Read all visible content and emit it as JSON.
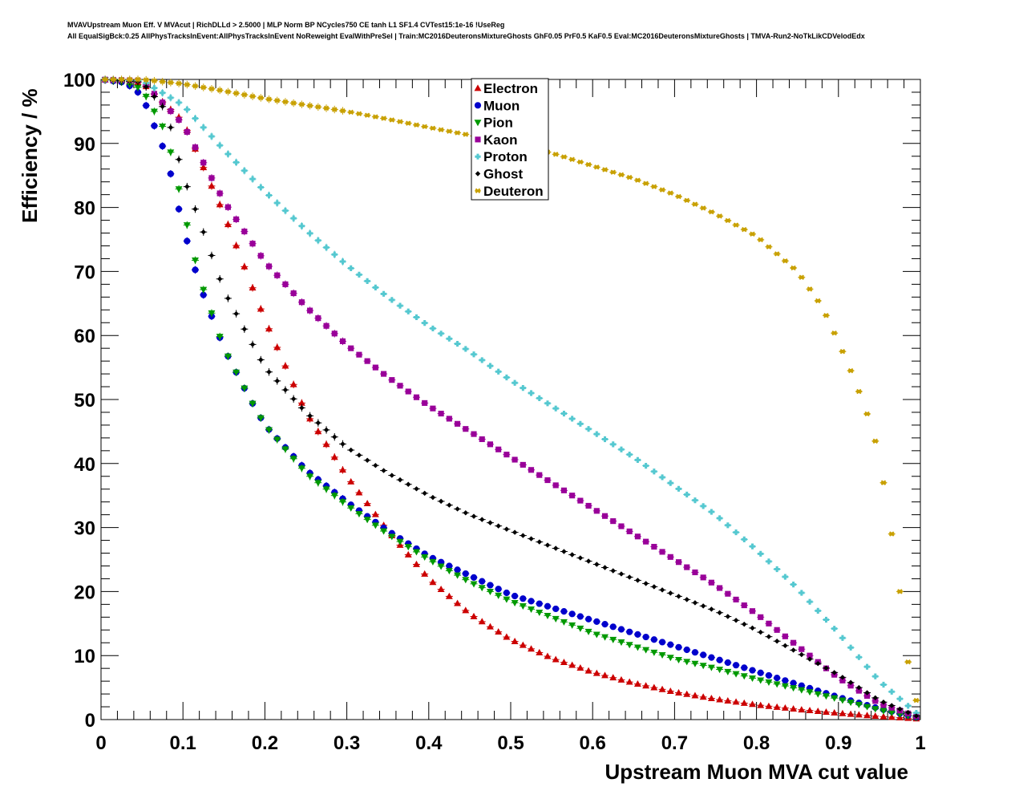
{
  "chart_data": {
    "type": "scatter",
    "title_line1": "MVAVUpstream Muon Eff. V MVAcut | RichDLLd > 2.5000 | MLP Norm BP NCycles750 CE tanh L1 SF1.4 CVTest15:1e-16 !UseReg",
    "title_line2": "All EqualSigBck:0.25 AllPhysTracksInEvent:AllPhysTracksInEvent NoReweight EvalWithPreSel | Train:MC2016DeuteronsMixtureGhosts GhF0.05 PrF0.5 KaF0.5 Eval:MC2016DeuteronsMixtureGhosts | TMVA-Run2-NoTkLikCDVelodEdx",
    "xlabel": "Upstream Muon MVA cut value",
    "ylabel": "Efficiency / %",
    "xlim": [
      0,
      1
    ],
    "ylim": [
      0,
      100
    ],
    "x_ticks": [
      "0",
      "0.1",
      "0.2",
      "0.3",
      "0.4",
      "0.5",
      "0.6",
      "0.7",
      "0.8",
      "0.9",
      "1"
    ],
    "y_ticks": [
      "0",
      "10",
      "20",
      "30",
      "40",
      "50",
      "60",
      "70",
      "80",
      "90",
      "100"
    ],
    "legend_position": "top-center",
    "series": [
      {
        "name": "Electron",
        "color": "#cc0000",
        "marker": "triangle-up",
        "points": [
          [
            0,
            100
          ],
          [
            0.05,
            99.5
          ],
          [
            0.1,
            93.5
          ],
          [
            0.15,
            79
          ],
          [
            0.2,
            62.5
          ],
          [
            0.25,
            48
          ],
          [
            0.3,
            38
          ],
          [
            0.35,
            29.5
          ],
          [
            0.4,
            22
          ],
          [
            0.45,
            16.5
          ],
          [
            0.5,
            12.5
          ],
          [
            0.55,
            9.6
          ],
          [
            0.6,
            7.4
          ],
          [
            0.65,
            5.7
          ],
          [
            0.7,
            4.3
          ],
          [
            0.75,
            3.2
          ],
          [
            0.8,
            2.3
          ],
          [
            0.85,
            1.6
          ],
          [
            0.9,
            1.0
          ],
          [
            0.95,
            0.5
          ],
          [
            1,
            0.1
          ]
        ]
      },
      {
        "name": "Muon",
        "color": "#0000cc",
        "marker": "circle",
        "points": [
          [
            0,
            100
          ],
          [
            0.03,
            99.5
          ],
          [
            0.05,
            97.5
          ],
          [
            0.08,
            88
          ],
          [
            0.1,
            77
          ],
          [
            0.12,
            68
          ],
          [
            0.15,
            58
          ],
          [
            0.18,
            50.5
          ],
          [
            0.2,
            46
          ],
          [
            0.25,
            39
          ],
          [
            0.3,
            34
          ],
          [
            0.35,
            29.5
          ],
          [
            0.4,
            25.5
          ],
          [
            0.45,
            22.5
          ],
          [
            0.5,
            19.5
          ],
          [
            0.55,
            17.5
          ],
          [
            0.6,
            15.5
          ],
          [
            0.65,
            13.5
          ],
          [
            0.7,
            11.5
          ],
          [
            0.75,
            9.5
          ],
          [
            0.8,
            7.5
          ],
          [
            0.85,
            5.5
          ],
          [
            0.9,
            3.5
          ],
          [
            0.95,
            1.7
          ],
          [
            1,
            0.2
          ]
        ]
      },
      {
        "name": "Pion",
        "color": "#009900",
        "marker": "triangle-down",
        "points": [
          [
            0,
            100
          ],
          [
            0.03,
            99.5
          ],
          [
            0.05,
            98.5
          ],
          [
            0.08,
            91.5
          ],
          [
            0.1,
            80
          ],
          [
            0.12,
            69
          ],
          [
            0.15,
            58
          ],
          [
            0.18,
            50.5
          ],
          [
            0.2,
            46
          ],
          [
            0.25,
            38.5
          ],
          [
            0.3,
            33.5
          ],
          [
            0.35,
            29
          ],
          [
            0.4,
            25
          ],
          [
            0.45,
            21.5
          ],
          [
            0.5,
            18.5
          ],
          [
            0.55,
            16
          ],
          [
            0.6,
            13.5
          ],
          [
            0.65,
            11.5
          ],
          [
            0.7,
            9.5
          ],
          [
            0.75,
            8
          ],
          [
            0.8,
            6.3
          ],
          [
            0.85,
            4.8
          ],
          [
            0.9,
            3.2
          ],
          [
            0.95,
            1.5
          ],
          [
            1,
            0.2
          ]
        ]
      },
      {
        "name": "Kaon",
        "color": "#990099",
        "marker": "square",
        "points": [
          [
            0,
            100
          ],
          [
            0.05,
            99.8
          ],
          [
            0.1,
            93
          ],
          [
            0.15,
            81
          ],
          [
            0.2,
            71.5
          ],
          [
            0.25,
            64.5
          ],
          [
            0.3,
            58.5
          ],
          [
            0.35,
            53.5
          ],
          [
            0.4,
            49
          ],
          [
            0.45,
            45
          ],
          [
            0.5,
            41
          ],
          [
            0.55,
            37
          ],
          [
            0.6,
            33
          ],
          [
            0.65,
            29
          ],
          [
            0.7,
            25
          ],
          [
            0.75,
            21
          ],
          [
            0.8,
            16.5
          ],
          [
            0.85,
            11.5
          ],
          [
            0.9,
            6.5
          ],
          [
            0.95,
            2.5
          ],
          [
            1,
            0.3
          ]
        ]
      },
      {
        "name": "Proton",
        "color": "#55c8d0",
        "marker": "cross",
        "points": [
          [
            0,
            100
          ],
          [
            0.05,
            99.8
          ],
          [
            0.1,
            96
          ],
          [
            0.15,
            89
          ],
          [
            0.2,
            82.5
          ],
          [
            0.25,
            76.5
          ],
          [
            0.3,
            71
          ],
          [
            0.35,
            66
          ],
          [
            0.4,
            61.5
          ],
          [
            0.45,
            57.5
          ],
          [
            0.5,
            53
          ],
          [
            0.55,
            49
          ],
          [
            0.6,
            45
          ],
          [
            0.65,
            41
          ],
          [
            0.7,
            36.5
          ],
          [
            0.75,
            32
          ],
          [
            0.8,
            26.5
          ],
          [
            0.85,
            20.5
          ],
          [
            0.9,
            13.5
          ],
          [
            0.95,
            6
          ],
          [
            1,
            0.5
          ]
        ]
      },
      {
        "name": "Ghost",
        "color": "#000000",
        "marker": "diamond",
        "points": [
          [
            0,
            100
          ],
          [
            0.05,
            99.6
          ],
          [
            0.08,
            95
          ],
          [
            0.1,
            85
          ],
          [
            0.12,
            78
          ],
          [
            0.15,
            67
          ],
          [
            0.2,
            55
          ],
          [
            0.25,
            48
          ],
          [
            0.3,
            42.5
          ],
          [
            0.35,
            38.5
          ],
          [
            0.4,
            35
          ],
          [
            0.45,
            32
          ],
          [
            0.5,
            29.5
          ],
          [
            0.55,
            27
          ],
          [
            0.6,
            24.5
          ],
          [
            0.65,
            22
          ],
          [
            0.7,
            19.5
          ],
          [
            0.75,
            17
          ],
          [
            0.8,
            14
          ],
          [
            0.85,
            10.5
          ],
          [
            0.9,
            7
          ],
          [
            0.95,
            3
          ],
          [
            1,
            0.3
          ]
        ]
      },
      {
        "name": "Deuteron",
        "color": "#c8a000",
        "marker": "star",
        "points": [
          [
            0,
            100
          ],
          [
            0.05,
            100
          ],
          [
            0.1,
            99.3
          ],
          [
            0.15,
            98.2
          ],
          [
            0.2,
            97
          ],
          [
            0.25,
            96
          ],
          [
            0.3,
            95
          ],
          [
            0.35,
            93.8
          ],
          [
            0.4,
            92.5
          ],
          [
            0.45,
            91.3
          ],
          [
            0.5,
            90
          ],
          [
            0.55,
            88.5
          ],
          [
            0.6,
            86.5
          ],
          [
            0.65,
            84.5
          ],
          [
            0.7,
            82
          ],
          [
            0.75,
            79
          ],
          [
            0.8,
            75.5
          ],
          [
            0.85,
            70
          ],
          [
            0.88,
            64.5
          ],
          [
            0.9,
            59
          ],
          [
            0.92,
            53
          ],
          [
            0.94,
            46
          ],
          [
            0.95,
            41
          ],
          [
            0.96,
            33
          ],
          [
            0.97,
            25
          ],
          [
            0.98,
            15
          ],
          [
            0.99,
            3
          ]
        ]
      }
    ]
  }
}
